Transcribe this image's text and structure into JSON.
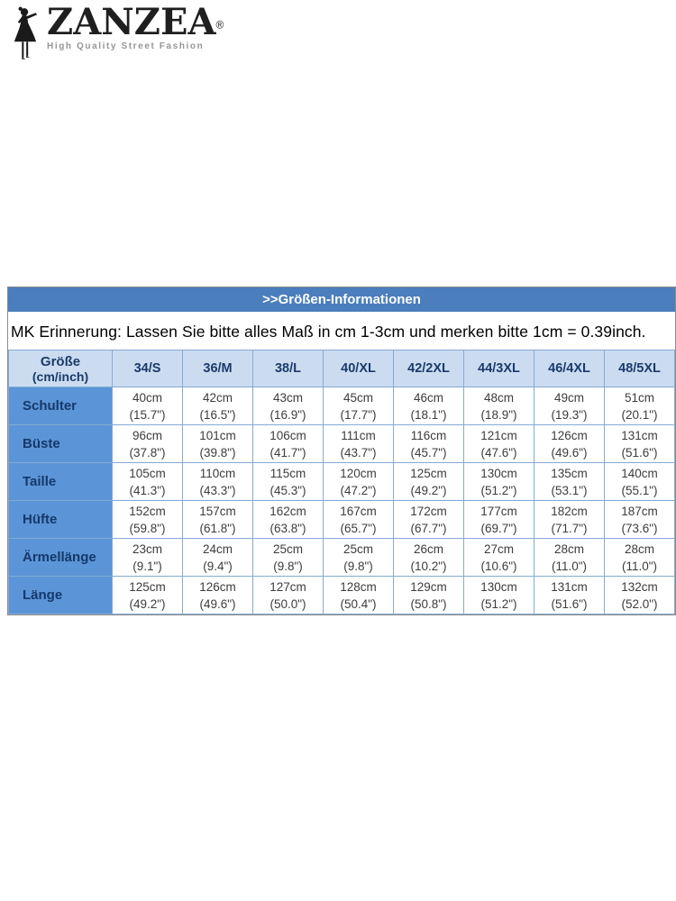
{
  "logo": {
    "brand": "ZANZEA",
    "registered": "®",
    "tagline": "High Quality Street Fashion"
  },
  "size_info": {
    "title": ">>Größen-Informationen",
    "note": "MK Erinnerung: Lassen Sie bitte alles Maß in cm 1-3cm und merken bitte 1cm = 0.39inch.",
    "corner_header": {
      "line1": "Größe",
      "line2": "(cm/inch)"
    },
    "sizes": [
      "34/S",
      "36/M",
      "38/L",
      "40/XL",
      "42/2XL",
      "44/3XL",
      "46/4XL",
      "48/5XL"
    ],
    "rows": [
      {
        "label": "Schulter",
        "cells": [
          {
            "cm": "40cm",
            "inch": "(15.7\")"
          },
          {
            "cm": "42cm",
            "inch": "(16.5\")"
          },
          {
            "cm": "43cm",
            "inch": "(16.9\")"
          },
          {
            "cm": "45cm",
            "inch": "(17.7\")"
          },
          {
            "cm": "46cm",
            "inch": "(18.1\")"
          },
          {
            "cm": "48cm",
            "inch": "(18.9\")"
          },
          {
            "cm": "49cm",
            "inch": "(19.3\")"
          },
          {
            "cm": "51cm",
            "inch": "(20.1\")"
          }
        ]
      },
      {
        "label": "Büste",
        "cells": [
          {
            "cm": "96cm",
            "inch": "(37.8\")"
          },
          {
            "cm": "101cm",
            "inch": "(39.8\")"
          },
          {
            "cm": "106cm",
            "inch": "(41.7\")"
          },
          {
            "cm": "111cm",
            "inch": "(43.7\")"
          },
          {
            "cm": "116cm",
            "inch": "(45.7\")"
          },
          {
            "cm": "121cm",
            "inch": "(47.6\")"
          },
          {
            "cm": "126cm",
            "inch": "(49.6\")"
          },
          {
            "cm": "131cm",
            "inch": "(51.6\")"
          }
        ]
      },
      {
        "label": "Taille",
        "cells": [
          {
            "cm": "105cm",
            "inch": "(41.3\")"
          },
          {
            "cm": "110cm",
            "inch": "(43.3\")"
          },
          {
            "cm": "115cm",
            "inch": "(45.3\")"
          },
          {
            "cm": "120cm",
            "inch": "(47.2\")"
          },
          {
            "cm": "125cm",
            "inch": "(49.2\")"
          },
          {
            "cm": "130cm",
            "inch": "(51.2\")"
          },
          {
            "cm": "135cm",
            "inch": "(53.1\")"
          },
          {
            "cm": "140cm",
            "inch": "(55.1\")"
          }
        ]
      },
      {
        "label": "Hüfte",
        "cells": [
          {
            "cm": "152cm",
            "inch": "(59.8\")"
          },
          {
            "cm": "157cm",
            "inch": "(61.8\")"
          },
          {
            "cm": "162cm",
            "inch": "(63.8\")"
          },
          {
            "cm": "167cm",
            "inch": "(65.7\")"
          },
          {
            "cm": "172cm",
            "inch": "(67.7\")"
          },
          {
            "cm": "177cm",
            "inch": "(69.7\")"
          },
          {
            "cm": "182cm",
            "inch": "(71.7\")"
          },
          {
            "cm": "187cm",
            "inch": "(73.6\")"
          }
        ]
      },
      {
        "label": "Ärmellänge",
        "cells": [
          {
            "cm": "23cm",
            "inch": "(9.1\")"
          },
          {
            "cm": "24cm",
            "inch": "(9.4\")"
          },
          {
            "cm": "25cm",
            "inch": "(9.8\")"
          },
          {
            "cm": "25cm",
            "inch": "(9.8\")"
          },
          {
            "cm": "26cm",
            "inch": "(10.2\")"
          },
          {
            "cm": "27cm",
            "inch": "(10.6\")"
          },
          {
            "cm": "28cm",
            "inch": "(11.0\")"
          },
          {
            "cm": "28cm",
            "inch": "(11.0\")"
          }
        ]
      },
      {
        "label": "Länge",
        "cells": [
          {
            "cm": "125cm",
            "inch": "(49.2\")"
          },
          {
            "cm": "126cm",
            "inch": "(49.6\")"
          },
          {
            "cm": "127cm",
            "inch": "(50.0\")"
          },
          {
            "cm": "128cm",
            "inch": "(50.4\")"
          },
          {
            "cm": "129cm",
            "inch": "(50.8\")"
          },
          {
            "cm": "130cm",
            "inch": "(51.2\")"
          },
          {
            "cm": "131cm",
            "inch": "(51.6\")"
          },
          {
            "cm": "132cm",
            "inch": "(52.0\")"
          }
        ]
      }
    ]
  },
  "colors": {
    "title_bar_blue": "#4a7ebc",
    "header_row_blue": "#cbdcf0",
    "label_column_blue": "#5b95d7",
    "navy_text": "#1b3a6b",
    "cell_border_blue": "#85aad5",
    "logo_black": "#1f1f1f",
    "tagline_gray": "#969696"
  }
}
